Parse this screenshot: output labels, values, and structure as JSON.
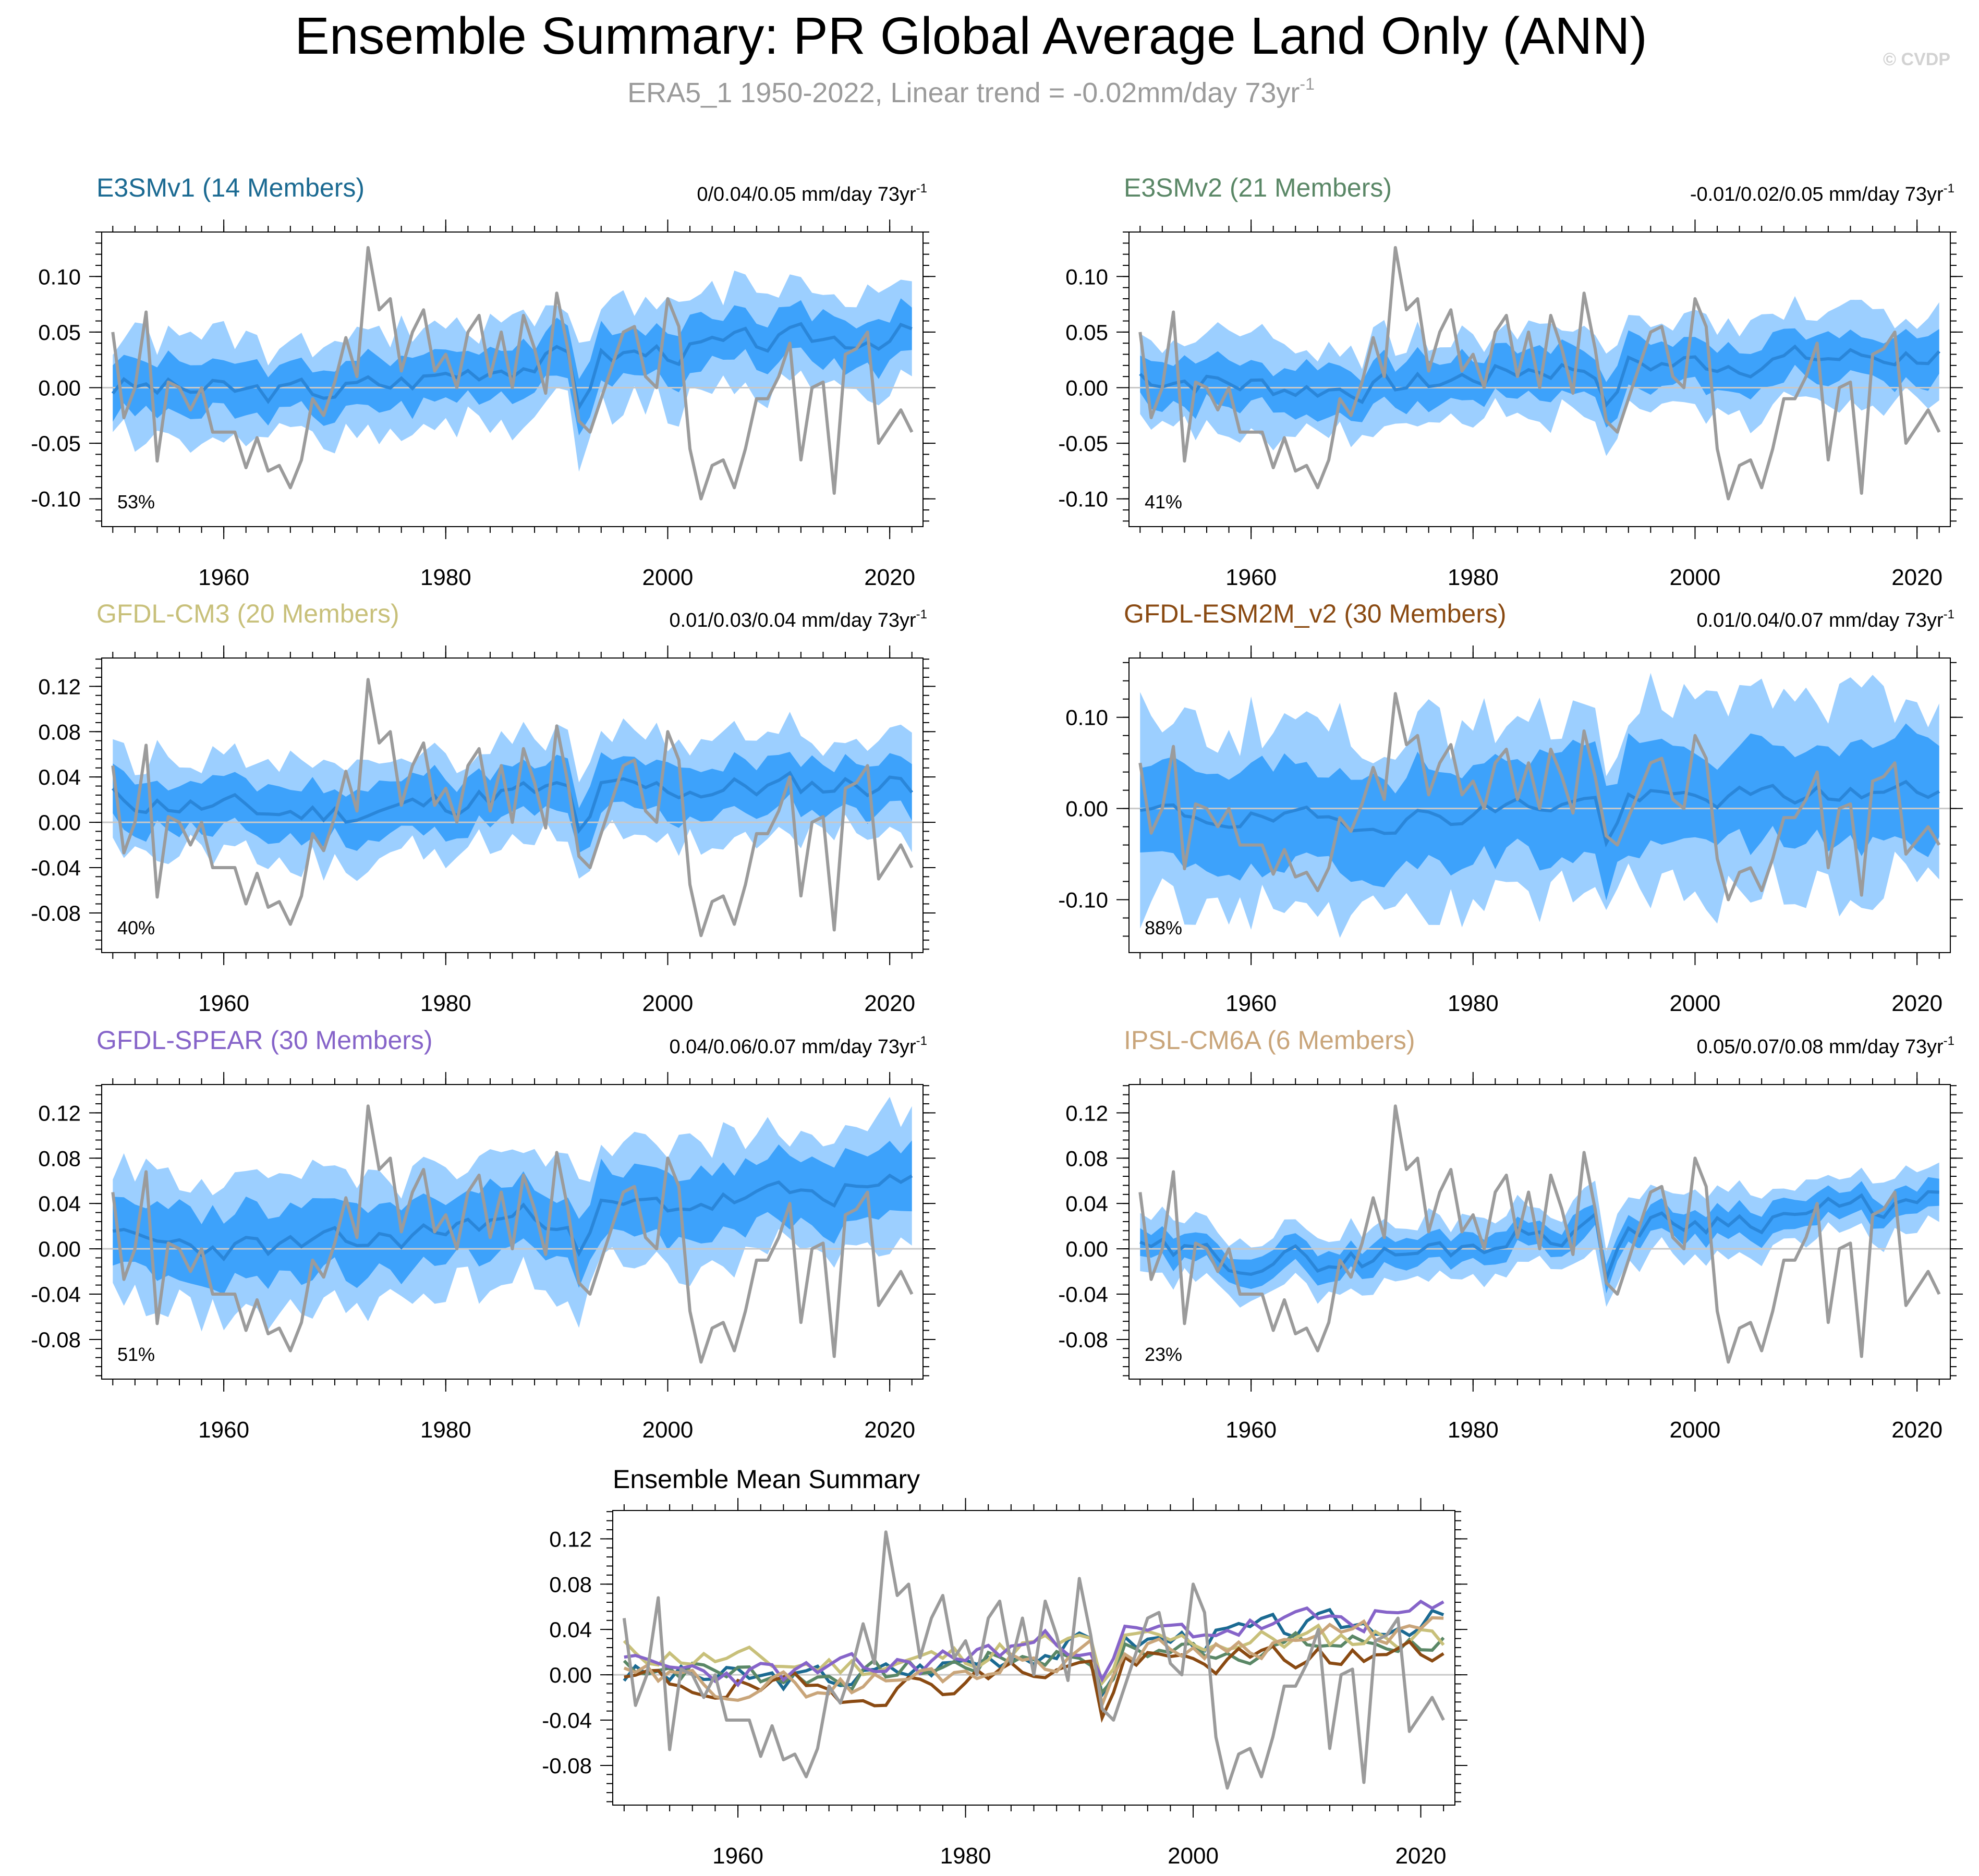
{
  "title": "Ensemble Summary: PR Global Average Land Only (ANN)",
  "subtitle": "ERA5_1 1950-2022, Linear trend = -0.02mm/day 73yr",
  "subtitle_sup": "-1",
  "watermark": "© CVDP",
  "colors": {
    "light_band": "#9ccfff",
    "dark_band": "#3da2fb",
    "mean_line": "#2a86d9",
    "obs_line": "#9b9b9b",
    "zero_line": "#c8c8c8"
  },
  "chart_data": [
    {
      "type": "line",
      "title": "E3SMv1 (14 Members)",
      "title_color": "#1b6a92",
      "trend_label": "0/0.04/0.05 mm/day 73yr",
      "trend_sup": "-1",
      "pct_label": "53%",
      "xlim": [
        1949,
        2023
      ],
      "ylim": [
        -0.125,
        0.14
      ],
      "yticks": [
        -0.1,
        -0.05,
        0.0,
        0.05,
        0.1
      ],
      "ytick_labels": [
        "-0.10",
        "-0.05",
        "0.00",
        "0.05",
        "0.10"
      ],
      "xticks": [
        1960,
        1980,
        2000,
        2020
      ],
      "xtick_labels": [
        "1960",
        "1980",
        "2000",
        "2020"
      ],
      "mean_seed": 3,
      "mean_trend": [
        0.005,
        0.05
      ],
      "inner_halfwidth": 0.022,
      "outer_halfwidth": 0.045
    },
    {
      "type": "line",
      "title": "E3SMv2 (21 Members)",
      "title_color": "#5a8766",
      "trend_label": "-0.01/0.02/0.05 mm/day 73yr",
      "trend_sup": "-1",
      "pct_label": "41%",
      "xlim": [
        1949,
        2023
      ],
      "ylim": [
        -0.125,
        0.14
      ],
      "yticks": [
        -0.1,
        -0.05,
        0.0,
        0.05,
        0.1
      ],
      "ytick_labels": [
        "-0.10",
        "-0.05",
        "0.00",
        "0.05",
        "0.10"
      ],
      "xticks": [
        1960,
        1980,
        2000,
        2020
      ],
      "xtick_labels": [
        "1960",
        "1980",
        "2000",
        "2020"
      ],
      "mean_seed": 7,
      "mean_trend": [
        0.015,
        0.03
      ],
      "inner_halfwidth": 0.02,
      "outer_halfwidth": 0.04
    },
    {
      "type": "line",
      "title": "GFDL-CM3 (20 Members)",
      "title_color": "#c8c07a",
      "trend_label": "0.01/0.03/0.04 mm/day 73yr",
      "trend_sup": "-1",
      "pct_label": "40%",
      "xlim": [
        1949,
        2023
      ],
      "ylim": [
        -0.115,
        0.145
      ],
      "yticks": [
        -0.08,
        -0.04,
        0.0,
        0.04,
        0.08,
        0.12
      ],
      "ytick_labels": [
        "-0.08",
        "-0.04",
        "0.00",
        "0.04",
        "0.08",
        "0.12"
      ],
      "xticks": [
        1960,
        1980,
        2000,
        2020
      ],
      "xtick_labels": [
        "1960",
        "1980",
        "2000",
        "2020"
      ],
      "mean_seed": 11,
      "mean_trend": [
        0.025,
        0.035
      ],
      "inner_halfwidth": 0.022,
      "outer_halfwidth": 0.042
    },
    {
      "type": "line",
      "title": "GFDL-ESM2M_v2 (30 Members)",
      "title_color": "#8a4a12",
      "trend_label": "0.01/0.04/0.07 mm/day 73yr",
      "trend_sup": "-1",
      "pct_label": "88%",
      "xlim": [
        1949,
        2023
      ],
      "ylim": [
        -0.158,
        0.165
      ],
      "yticks": [
        -0.1,
        0.0,
        0.1
      ],
      "ytick_labels": [
        "-0.10",
        "0.00",
        "0.10"
      ],
      "xticks": [
        1960,
        1980,
        2000,
        2020
      ],
      "xtick_labels": [
        "1960",
        "1980",
        "2000",
        "2020"
      ],
      "mean_seed": 19,
      "mean_trend": [
        0.0,
        0.02
      ],
      "inner_halfwidth": 0.055,
      "outer_halfwidth": 0.1
    },
    {
      "type": "line",
      "title": "GFDL-SPEAR (30 Members)",
      "title_color": "#8664c9",
      "trend_label": "0.04/0.06/0.07 mm/day 73yr",
      "trend_sup": "-1",
      "pct_label": "51%",
      "xlim": [
        1949,
        2023
      ],
      "ylim": [
        -0.115,
        0.145
      ],
      "yticks": [
        -0.08,
        -0.04,
        0.0,
        0.04,
        0.08,
        0.12
      ],
      "ytick_labels": [
        "-0.08",
        "-0.04",
        "0.00",
        "0.04",
        "0.08",
        "0.12"
      ],
      "xticks": [
        1960,
        1980,
        2000,
        2020
      ],
      "xtick_labels": [
        "1960",
        "1980",
        "2000",
        "2020"
      ],
      "mean_seed": 23,
      "mean_trend": [
        0.01,
        0.055
      ],
      "inner_halfwidth": 0.03,
      "outer_halfwidth": 0.055
    },
    {
      "type": "line",
      "title": "IPSL-CM6A (6 Members)",
      "title_color": "#c9a57a",
      "trend_label": "0.05/0.07/0.08 mm/day 73yr",
      "trend_sup": "-1",
      "pct_label": "23%",
      "xlim": [
        1949,
        2023
      ],
      "ylim": [
        -0.115,
        0.145
      ],
      "yticks": [
        -0.08,
        -0.04,
        0.0,
        0.04,
        0.08,
        0.12
      ],
      "ytick_labels": [
        "-0.08",
        "-0.04",
        "0.00",
        "0.04",
        "0.08",
        "0.12"
      ],
      "xticks": [
        1960,
        1980,
        2000,
        2020
      ],
      "xtick_labels": [
        "1960",
        "1980",
        "2000",
        "2020"
      ],
      "mean_seed": 29,
      "mean_trend": [
        0.0,
        0.04
      ],
      "inner_halfwidth": 0.012,
      "outer_halfwidth": 0.025
    },
    {
      "type": "line",
      "title": "Ensemble Mean Summary",
      "title_color": "#000000",
      "xlim": [
        1949,
        2023
      ],
      "ylim": [
        -0.115,
        0.145
      ],
      "yticks": [
        -0.08,
        -0.04,
        0.0,
        0.04,
        0.08,
        0.12
      ],
      "ytick_labels": [
        "-0.08",
        "-0.04",
        "0.00",
        "0.04",
        "0.08",
        "0.12"
      ],
      "xticks": [
        1960,
        1980,
        2000,
        2020
      ],
      "xtick_labels": [
        "1960",
        "1980",
        "2000",
        "2020"
      ],
      "series_colors": [
        "#1b6a92",
        "#5a8766",
        "#c8c07a",
        "#8a4a12",
        "#8664c9",
        "#c9a57a"
      ]
    }
  ],
  "obs_years_start": 1950,
  "obs_values": [
    0.05,
    -0.027,
    0.0,
    0.068,
    -0.066,
    0.005,
    0.0,
    -0.02,
    0.0,
    -0.04,
    -0.04,
    -0.04,
    -0.072,
    -0.045,
    -0.075,
    -0.07,
    -0.09,
    -0.065,
    -0.01,
    -0.025,
    0.005,
    0.045,
    0.01,
    0.126,
    0.07,
    0.08,
    0.015,
    0.05,
    0.07,
    0.015,
    0.03,
    0.0,
    0.05,
    0.065,
    0.01,
    0.05,
    0.0,
    0.065,
    0.035,
    -0.005,
    0.085,
    0.035,
    -0.03,
    -0.04,
    -0.01,
    0.02,
    0.05,
    0.055,
    0.01,
    0.0,
    0.08,
    0.055,
    -0.055,
    -0.1,
    -0.07,
    -0.065,
    -0.09,
    -0.055,
    -0.01,
    -0.01,
    0.01,
    0.04,
    -0.065,
    0.0,
    0.005,
    -0.095,
    0.03,
    0.035,
    0.05,
    -0.05,
    -0.035,
    -0.02,
    -0.04
  ]
}
